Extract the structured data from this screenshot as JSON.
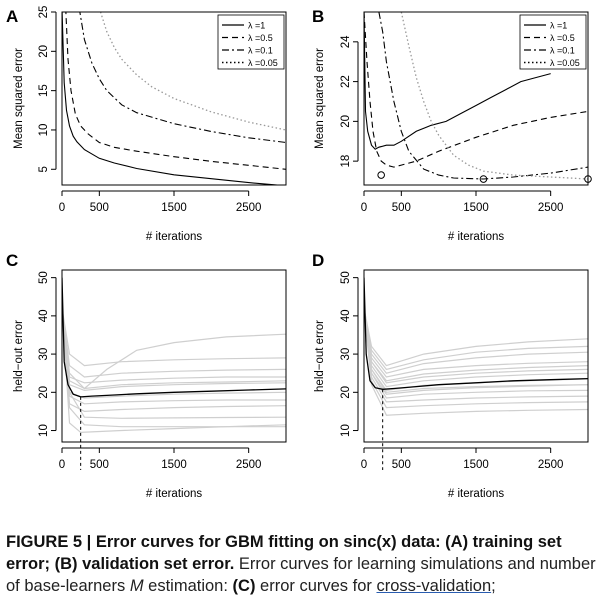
{
  "chart_data": [
    {
      "panel": "A",
      "type": "line",
      "xlabel": "# iterations",
      "ylabel": "Mean squared error",
      "xlim": [
        0,
        3000
      ],
      "ylim": [
        3,
        25
      ],
      "xticks": [
        0,
        500,
        1500,
        2500
      ],
      "yticks": [
        5,
        10,
        15,
        20,
        25
      ],
      "legend": {
        "placement": "top-right",
        "entries": [
          "λ =1",
          "λ =0.5",
          "λ =0.1",
          "λ =0.05"
        ]
      },
      "series": [
        {
          "name": "λ =1",
          "line_style": "solid",
          "color": "#000000",
          "x": [
            0,
            30,
            60,
            100,
            150,
            200,
            300,
            500,
            700,
            1000,
            1500,
            2000,
            2500,
            3000
          ],
          "y": [
            25.5,
            16,
            12.5,
            10.5,
            9.2,
            8.5,
            7.5,
            6.4,
            5.8,
            5.1,
            4.3,
            3.8,
            3.3,
            2.9
          ]
        },
        {
          "name": "λ =0.5",
          "line_style": "dashed",
          "color": "#000000",
          "x": [
            50,
            80,
            120,
            180,
            250,
            350,
            500,
            700,
            1000,
            1500,
            2000,
            2500,
            3000
          ],
          "y": [
            25.5,
            19,
            15,
            12,
            10.5,
            9.5,
            8.4,
            7.8,
            7.3,
            6.6,
            6.0,
            5.5,
            5.0
          ]
        },
        {
          "name": "λ =0.1",
          "line_style": "dashdot",
          "color": "#000000",
          "x": [
            230,
            300,
            400,
            500,
            600,
            800,
            1000,
            1500,
            2000,
            2500,
            3000
          ],
          "y": [
            25.5,
            21.5,
            18.5,
            16.5,
            15,
            13.2,
            12.2,
            10.8,
            9.8,
            9.0,
            8.4
          ]
        },
        {
          "name": "λ =0.05",
          "line_style": "dotted",
          "color": "#999999",
          "x": [
            500,
            600,
            700,
            800,
            1000,
            1200,
            1500,
            2000,
            2500,
            3000
          ],
          "y": [
            25.5,
            22.5,
            20.5,
            19,
            17,
            15.5,
            14,
            12.3,
            11,
            10
          ]
        }
      ]
    },
    {
      "panel": "B",
      "type": "line",
      "xlabel": "# iterations",
      "ylabel": "Mean squared error",
      "xlim": [
        0,
        3000
      ],
      "ylim": [
        16.8,
        25.5
      ],
      "xticks": [
        0,
        500,
        1500,
        2500
      ],
      "yticks": [
        18,
        20,
        22,
        24
      ],
      "legend": {
        "placement": "top-right",
        "entries": [
          "λ =1",
          "λ =0.5",
          "λ =0.1",
          "λ =0.05"
        ]
      },
      "minima_markers": [
        {
          "x": 230,
          "y": 17.3
        },
        {
          "x": 1600,
          "y": 17.1
        },
        {
          "x": 3000,
          "y": 17.1
        }
      ],
      "series": [
        {
          "name": "λ =1",
          "line_style": "solid",
          "color": "#000000",
          "x": [
            0,
            20,
            50,
            100,
            150,
            200,
            300,
            400,
            500,
            700,
            900,
            1100,
            1300,
            1500,
            1700,
            1900,
            2100,
            2300,
            2500
          ],
          "y": [
            25.5,
            20.5,
            19.5,
            18.8,
            18.6,
            18.7,
            18.8,
            18.8,
            19.0,
            19.5,
            19.8,
            20.0,
            20.4,
            20.8,
            21.2,
            21.6,
            22.0,
            22.2,
            22.4
          ]
        },
        {
          "name": "λ =0.5",
          "line_style": "dashed",
          "color": "#000000",
          "x": [
            0,
            40,
            80,
            120,
            170,
            230,
            300,
            400,
            500,
            700,
            1000,
            1500,
            2000,
            2500,
            3000
          ],
          "y": [
            25.5,
            23,
            21,
            19.5,
            18.5,
            18.0,
            17.8,
            17.7,
            17.8,
            18.0,
            18.5,
            19.2,
            19.8,
            20.2,
            20.5
          ]
        },
        {
          "name": "λ =0.1",
          "line_style": "dashdot",
          "color": "#000000",
          "x": [
            200,
            250,
            300,
            400,
            500,
            600,
            800,
            1000,
            1200,
            1600,
            2000,
            2500,
            3000
          ],
          "y": [
            25.5,
            24.5,
            23,
            21,
            19.5,
            18.5,
            17.6,
            17.3,
            17.15,
            17.1,
            17.2,
            17.4,
            17.7
          ]
        },
        {
          "name": "λ =0.05",
          "line_style": "dotted",
          "color": "#999999",
          "x": [
            500,
            600,
            700,
            800,
            900,
            1000,
            1200,
            1400,
            1600,
            2000,
            2500,
            3000
          ],
          "y": [
            25.5,
            23.8,
            22.2,
            21.0,
            20.0,
            19.3,
            18.3,
            17.8,
            17.5,
            17.3,
            17.2,
            17.1
          ]
        }
      ]
    },
    {
      "panel": "C",
      "type": "line",
      "xlabel": "# iterations",
      "ylabel": "held−out error",
      "xlim": [
        0,
        3000
      ],
      "ylim": [
        7,
        52
      ],
      "xticks": [
        0,
        500,
        1500,
        2500
      ],
      "yticks": [
        10,
        20,
        30,
        40,
        50
      ],
      "vline_x": 250,
      "mean_series": {
        "x": [
          0,
          30,
          80,
          150,
          250,
          400,
          700,
          1000,
          1500,
          2000,
          2500,
          3000
        ],
        "y": [
          50,
          28,
          22,
          19.5,
          18.8,
          19.0,
          19.3,
          19.6,
          20.0,
          20.3,
          20.6,
          20.9
        ]
      },
      "runs": [
        {
          "x": [
            0,
            100,
            300,
            800,
            1500,
            2200,
            3000
          ],
          "y": [
            42,
            20,
            13.5,
            13.2,
            13.3,
            13.4,
            13.5
          ]
        },
        {
          "x": [
            0,
            100,
            300,
            800,
            1500,
            2200,
            3000
          ],
          "y": [
            42,
            16,
            11.5,
            11.0,
            11.0,
            11.0,
            11.0
          ]
        },
        {
          "x": [
            0,
            100,
            250,
            800,
            1500,
            2200,
            3000
          ],
          "y": [
            42,
            12,
            9.5,
            10.0,
            10.5,
            11.0,
            11.5
          ]
        },
        {
          "x": [
            0,
            100,
            300,
            800,
            1500,
            2200,
            3000
          ],
          "y": [
            42,
            17,
            15,
            15.5,
            16.0,
            16.3,
            16.5
          ]
        },
        {
          "x": [
            0,
            100,
            300,
            800,
            1500,
            2200,
            3000
          ],
          "y": [
            42,
            19,
            17,
            17.5,
            17.8,
            18.0,
            18.0
          ]
        },
        {
          "x": [
            0,
            100,
            300,
            800,
            1500,
            2200,
            3000
          ],
          "y": [
            42,
            20,
            18.5,
            19.0,
            19.5,
            19.8,
            20.0
          ]
        },
        {
          "x": [
            0,
            100,
            300,
            800,
            1500,
            2200,
            3000
          ],
          "y": [
            42,
            22,
            20.5,
            21.5,
            22.0,
            22.3,
            22.5
          ]
        },
        {
          "x": [
            0,
            100,
            300,
            800,
            1500,
            2200,
            3000
          ],
          "y": [
            42,
            24,
            22.5,
            23.2,
            23.7,
            24.0,
            24.0
          ]
        },
        {
          "x": [
            0,
            100,
            300,
            800,
            1500,
            2200,
            3000
          ],
          "y": [
            42,
            27,
            24,
            25.0,
            25.5,
            25.8,
            26.0
          ]
        },
        {
          "x": [
            0,
            100,
            300,
            800,
            1500,
            2200,
            3000
          ],
          "y": [
            42,
            30,
            27,
            28.0,
            28.5,
            28.8,
            29.0
          ]
        },
        {
          "x": [
            0,
            100,
            300,
            600,
            1000,
            1500,
            2200,
            3000
          ],
          "y": [
            42,
            25,
            21,
            26.0,
            31.0,
            33.0,
            34.5,
            35.2
          ]
        },
        {
          "x": [
            0,
            100,
            300,
            800,
            1500,
            2200,
            3000
          ],
          "y": [
            42,
            23,
            21,
            22.0,
            22.5,
            22.7,
            23.0
          ]
        }
      ]
    },
    {
      "panel": "D",
      "type": "line",
      "xlabel": "# iterations",
      "ylabel": "held−out error",
      "xlim": [
        0,
        3000
      ],
      "ylim": [
        7,
        52
      ],
      "xticks": [
        0,
        500,
        1500,
        2500
      ],
      "yticks": [
        10,
        20,
        30,
        40,
        50
      ],
      "vline_x": 250,
      "mean_series": {
        "x": [
          0,
          30,
          80,
          150,
          250,
          400,
          700,
          1000,
          1500,
          2000,
          2500,
          3000
        ],
        "y": [
          50,
          30,
          23,
          21.2,
          20.8,
          21.0,
          21.5,
          22.0,
          22.5,
          23.0,
          23.3,
          23.6
        ]
      },
      "runs": [
        {
          "x": [
            0,
            100,
            300,
            800,
            1500,
            2200,
            3000
          ],
          "y": [
            42,
            22,
            14,
            14.5,
            15.0,
            15.3,
            15.5
          ]
        },
        {
          "x": [
            0,
            100,
            300,
            800,
            1500,
            2200,
            3000
          ],
          "y": [
            42,
            23,
            16,
            16.5,
            17.0,
            17.3,
            17.5
          ]
        },
        {
          "x": [
            0,
            100,
            300,
            800,
            1500,
            2200,
            3000
          ],
          "y": [
            42,
            24,
            17.5,
            18.0,
            18.5,
            18.8,
            19.0
          ]
        },
        {
          "x": [
            0,
            100,
            300,
            800,
            1500,
            2200,
            3000
          ],
          "y": [
            42,
            25,
            18.5,
            19.5,
            20.0,
            20.4,
            20.5
          ]
        },
        {
          "x": [
            0,
            100,
            300,
            800,
            1500,
            2200,
            3000
          ],
          "y": [
            42,
            25,
            19.5,
            20.5,
            21.2,
            21.6,
            22.0
          ]
        },
        {
          "x": [
            0,
            100,
            300,
            800,
            1500,
            2200,
            3000
          ],
          "y": [
            42,
            26,
            20.5,
            21.8,
            22.5,
            23.0,
            23.5
          ]
        },
        {
          "x": [
            0,
            100,
            300,
            800,
            1500,
            2200,
            3000
          ],
          "y": [
            42,
            27,
            21.5,
            23.0,
            24.0,
            24.6,
            25.0
          ]
        },
        {
          "x": [
            0,
            100,
            300,
            800,
            1500,
            2200,
            3000
          ],
          "y": [
            42,
            28,
            22.5,
            24.0,
            25.0,
            25.6,
            26.0
          ]
        },
        {
          "x": [
            0,
            100,
            300,
            800,
            1500,
            2200,
            3000
          ],
          "y": [
            42,
            28,
            23,
            24.8,
            25.8,
            26.5,
            27.0
          ]
        },
        {
          "x": [
            0,
            100,
            300,
            800,
            1500,
            2200,
            3000
          ],
          "y": [
            42,
            29,
            24,
            26.0,
            27.0,
            27.6,
            28.0
          ]
        },
        {
          "x": [
            0,
            100,
            300,
            800,
            1500,
            2200,
            3000
          ],
          "y": [
            42,
            30,
            25,
            27.5,
            29.0,
            30.0,
            30.5
          ]
        },
        {
          "x": [
            0,
            100,
            300,
            800,
            1500,
            2200,
            3000
          ],
          "y": [
            42,
            31,
            26,
            28.5,
            30.5,
            31.5,
            32.0
          ]
        },
        {
          "x": [
            0,
            100,
            300,
            800,
            1500,
            2200,
            3000
          ],
          "y": [
            42,
            32,
            27,
            30.0,
            32.0,
            33.2,
            34.0
          ]
        },
        {
          "x": [
            0,
            100,
            300,
            800,
            1500,
            2200,
            3000
          ],
          "y": [
            42,
            26,
            20,
            21.0,
            21.5,
            21.8,
            22.0
          ]
        }
      ]
    }
  ],
  "caption": {
    "bold_intro": "FIGURE 5 | Error curves for GBM fitting on sinc(x) data: (A) training set error; (B) validation set error.",
    "text_1": " Error curves for learning simulations and number of base-learners ",
    "symbol_M": "M",
    "text_2": " estimation: ",
    "bold_c": "(C)",
    "text_3": " error curves for ",
    "link_text": "cross-validation",
    "text_4": ";"
  }
}
